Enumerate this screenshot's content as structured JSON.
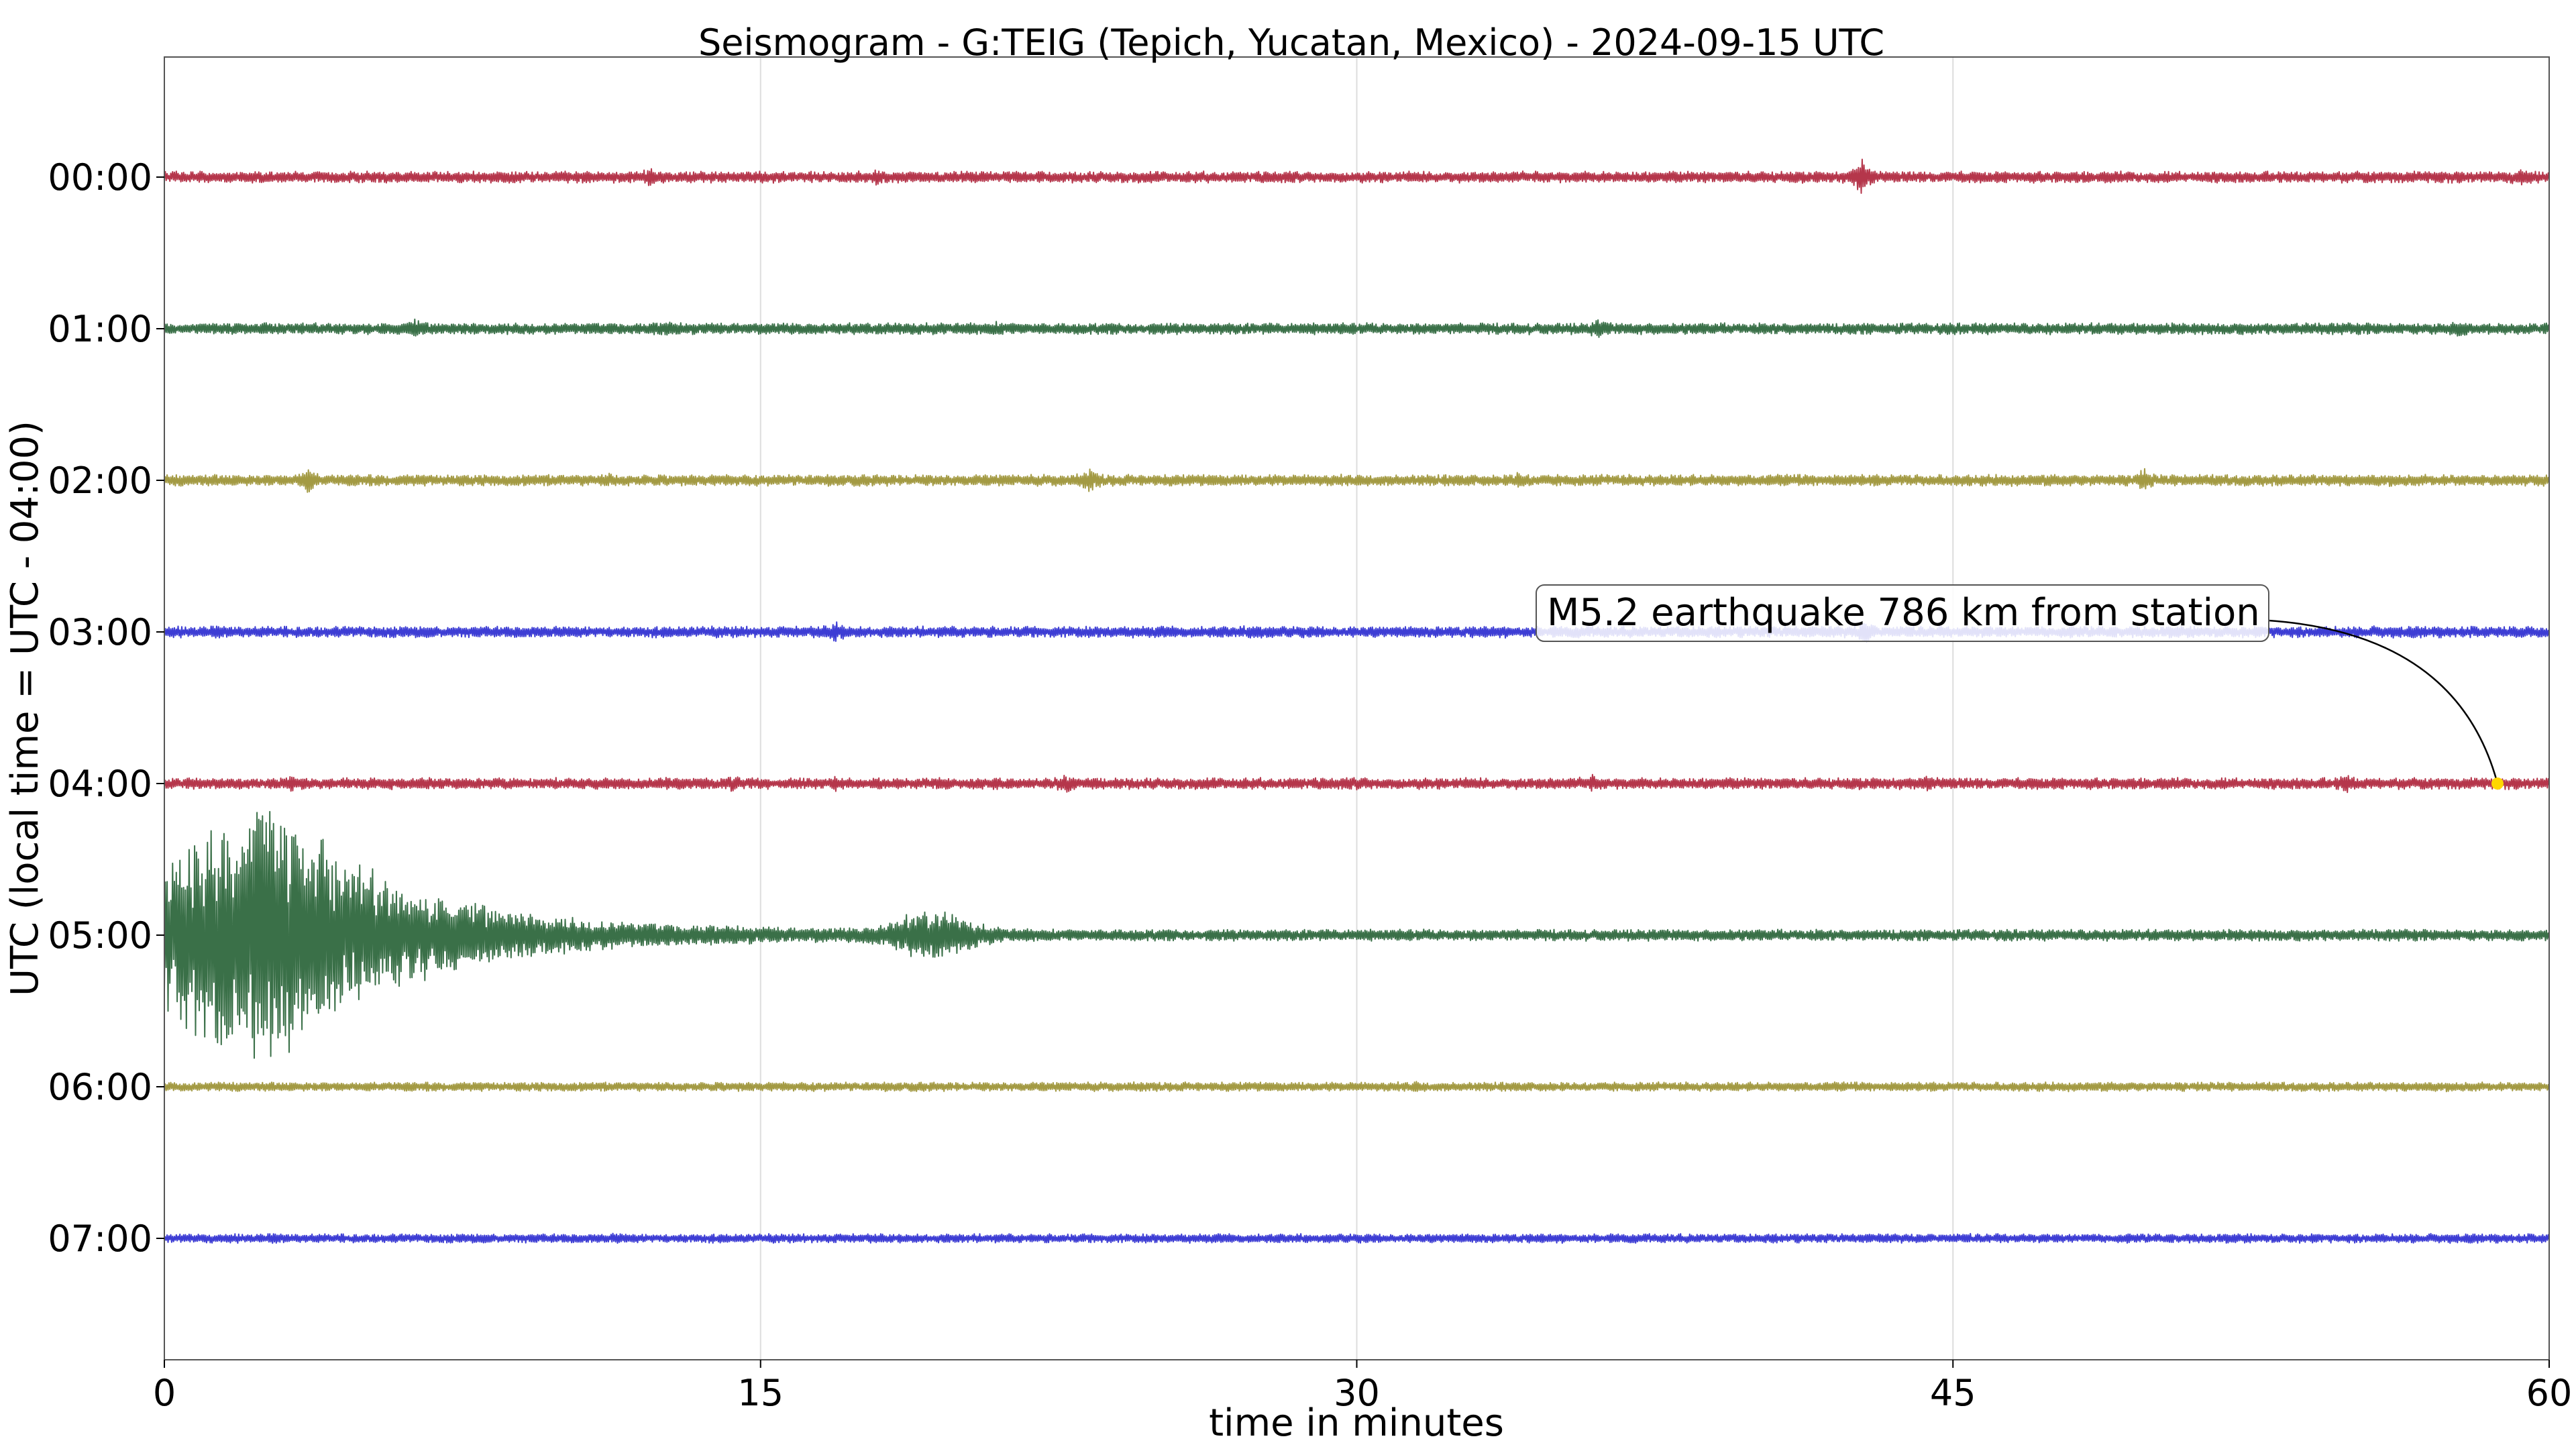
{
  "chart_data": {
    "type": "line",
    "title": "Seismogram - G:TEIG (Tepich, Yucatan, Mexico) - 2024-09-15 UTC",
    "xlabel": "time in minutes",
    "ylabel": "UTC (local time = UTC - 04:00)",
    "xlim": [
      0,
      60
    ],
    "x_ticks": [
      "0",
      "15",
      "30",
      "45",
      "60"
    ],
    "grid": "vertical",
    "traces": [
      {
        "label": "00:00",
        "color": "#b5364b",
        "baseline_noise": 1.0,
        "spikes": [
          {
            "t": 12.2,
            "amp": 1.7
          },
          {
            "t": 17.9,
            "amp": 1.5
          },
          {
            "t": 42.7,
            "amp": 4.5
          },
          {
            "t": 59.3,
            "amp": 1.8
          }
        ]
      },
      {
        "label": "01:00",
        "color": "#3a7048",
        "baseline_noise": 1.0,
        "spikes": [
          {
            "t": 6.3,
            "amp": 1.9
          },
          {
            "t": 12.6,
            "amp": 1.5
          },
          {
            "t": 21.0,
            "amp": 1.5
          },
          {
            "t": 36.1,
            "amp": 2.0
          },
          {
            "t": 57.7,
            "amp": 1.6
          }
        ]
      },
      {
        "label": "02:00",
        "color": "#a39a43",
        "baseline_noise": 1.0,
        "spikes": [
          {
            "t": 3.6,
            "amp": 3.0
          },
          {
            "t": 11.2,
            "amp": 1.4
          },
          {
            "t": 23.3,
            "amp": 2.6
          },
          {
            "t": 34.1,
            "amp": 2.0
          },
          {
            "t": 49.8,
            "amp": 2.4
          }
        ]
      },
      {
        "label": "03:00",
        "color": "#3d3dd4",
        "baseline_noise": 1.0,
        "spikes": [
          {
            "t": 16.9,
            "amp": 2.3
          },
          {
            "t": 27.5,
            "amp": 1.8
          },
          {
            "t": 42.8,
            "amp": 2.6
          }
        ]
      },
      {
        "label": "04:00",
        "color": "#b5364b",
        "baseline_noise": 1.0,
        "spikes": [
          {
            "t": 3.2,
            "amp": 1.7
          },
          {
            "t": 14.3,
            "amp": 1.6
          },
          {
            "t": 16.9,
            "amp": 1.4
          },
          {
            "t": 22.7,
            "amp": 2.2
          },
          {
            "t": 30.1,
            "amp": 1.4
          },
          {
            "t": 35.9,
            "amp": 1.7
          },
          {
            "t": 44.3,
            "amp": 1.6
          },
          {
            "t": 54.9,
            "amp": 2.0
          }
        ]
      },
      {
        "label": "05:00",
        "color": "#3a7048",
        "baseline_noise": 1.0,
        "spikes": [],
        "earthquake_onset_min": 0.0,
        "earthquake_peak_amp": 26
      },
      {
        "label": "06:00",
        "color": "#a39a43",
        "baseline_noise": 0.8,
        "spikes": [
          {
            "t": 31.5,
            "amp": 1.3
          }
        ]
      },
      {
        "label": "07:00",
        "color": "#3d3dd4",
        "baseline_noise": 0.8,
        "spikes": [
          {
            "t": 11.4,
            "amp": 1.3
          }
        ]
      }
    ],
    "annotation": {
      "text": "M5.2 earthquake 786 km from station",
      "marker_trace": "04:00",
      "marker_minute": 58.7,
      "marker_color": "#ffd700"
    }
  }
}
